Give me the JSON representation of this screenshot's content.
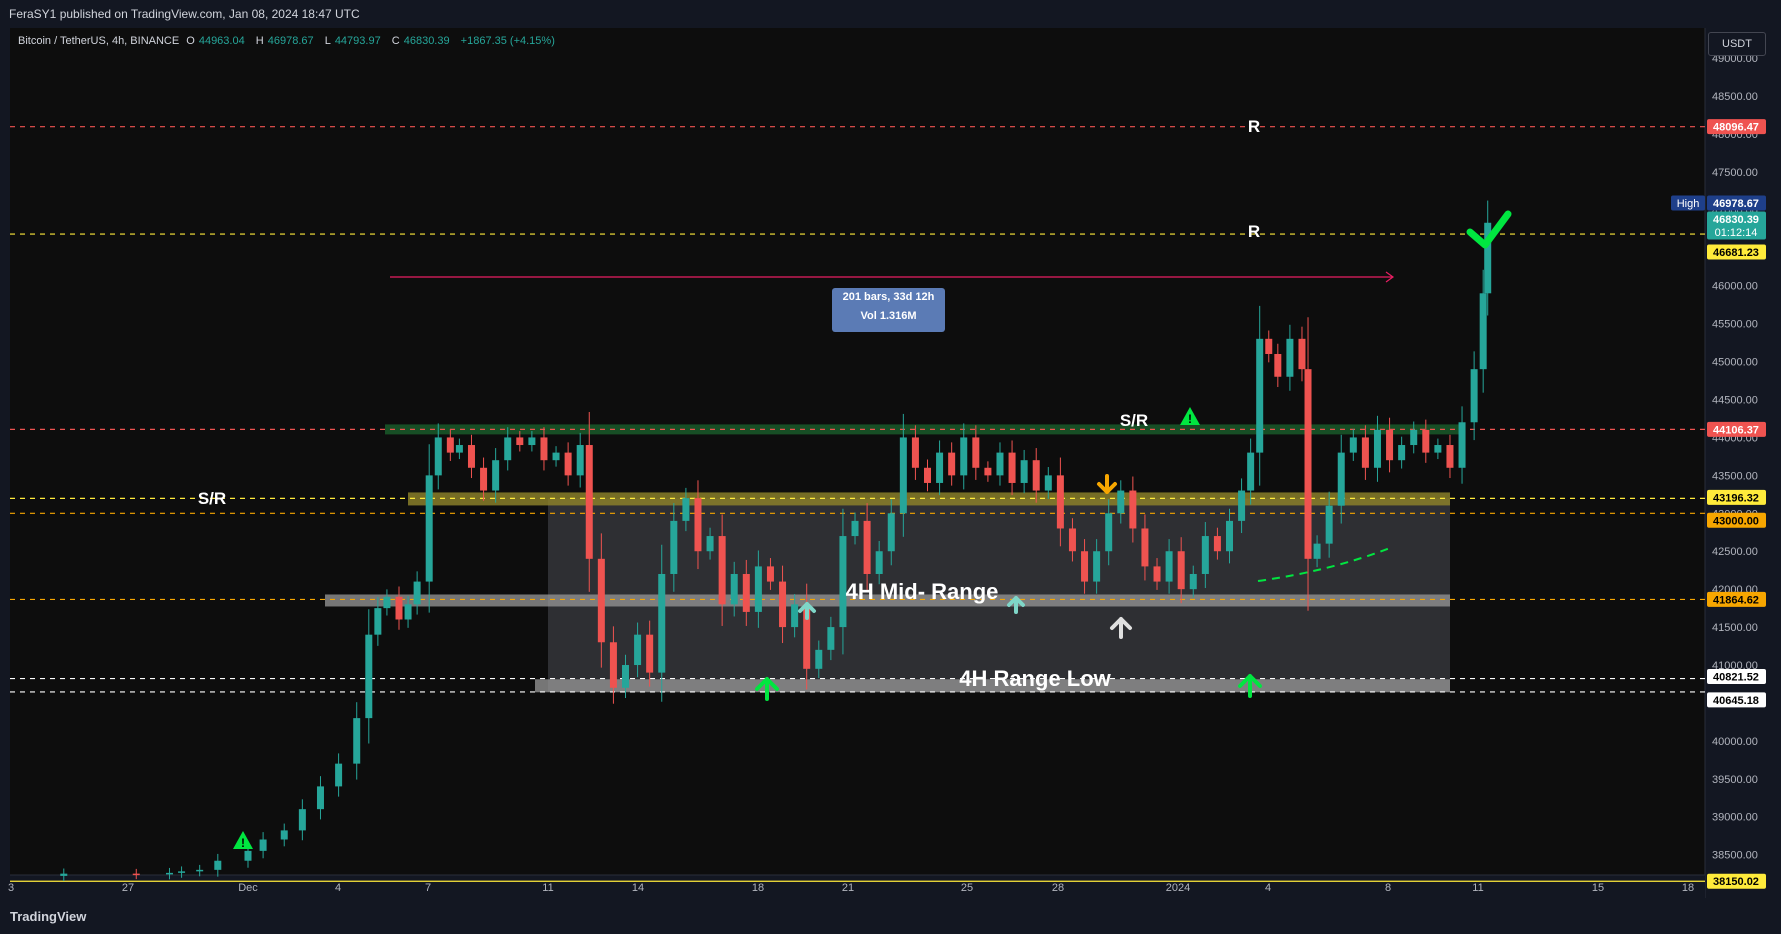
{
  "header": {
    "publisher": "FeraSY1 published on TradingView.com, Jan 08, 2024 18:47 UTC"
  },
  "legend": {
    "symbol": "Bitcoin / TetherUS, 4h, BINANCE",
    "open_label": "O",
    "open": "44963.04",
    "high_label": "H",
    "high": "46978.67",
    "low_label": "L",
    "low": "44793.97",
    "close_label": "C",
    "close": "46830.39",
    "change": "+1867.35 (+4.15%)"
  },
  "currency_button": "USDT",
  "footer": {
    "logo": "TradingView"
  },
  "colors": {
    "up": "#26a69a",
    "down": "#ef5350",
    "accent_green": "#00e640",
    "resistance_line": "#ef5350",
    "sr_line": "#f7a600",
    "yellow_line": "#ffeb3b"
  },
  "chart_data": {
    "type": "candlestick",
    "title": "",
    "xlabel": "",
    "ylabel": "",
    "ylim": [
      37900,
      49300
    ],
    "y_ticks": [
      "38500.00",
      "39000.00",
      "39500.00",
      "40000.00",
      "40500.00",
      "41000.00",
      "41500.00",
      "42000.00",
      "42500.00",
      "43000.00",
      "43500.00",
      "44000.00",
      "44500.00",
      "45000.00",
      "45500.00",
      "46000.00",
      "46500.00",
      "47000.00",
      "47500.00",
      "48000.00",
      "48500.00",
      "49000.00"
    ],
    "x_ticks": [
      "3",
      "27",
      "Dec",
      "4",
      "7",
      "11",
      "14",
      "18",
      "21",
      "25",
      "28",
      "2024",
      "4",
      "8",
      "11",
      "15",
      "18"
    ],
    "price_path": [
      [
        -6.7,
        38220
      ],
      [
        -6.1,
        38250
      ],
      [
        -3.7,
        38240
      ],
      [
        -2.6,
        38260
      ],
      [
        -2.2,
        38280
      ],
      [
        -1.6,
        38300
      ],
      [
        -1.0,
        38420
      ],
      [
        0,
        38550
      ],
      [
        0.5,
        38700
      ],
      [
        1.2,
        38820
      ],
      [
        1.8,
        39100
      ],
      [
        2.4,
        39400
      ],
      [
        3.0,
        39700
      ],
      [
        3.6,
        40300
      ],
      [
        4.0,
        41400
      ],
      [
        4.3,
        41750
      ],
      [
        4.6,
        41900
      ],
      [
        5.0,
        41600
      ],
      [
        5.3,
        41800
      ],
      [
        5.6,
        42100
      ],
      [
        6.0,
        43500
      ],
      [
        6.3,
        44000
      ],
      [
        6.7,
        43800
      ],
      [
        7.0,
        43900
      ],
      [
        7.4,
        43600
      ],
      [
        7.8,
        43300
      ],
      [
        8.2,
        43700
      ],
      [
        8.6,
        44000
      ],
      [
        9.0,
        43900
      ],
      [
        9.4,
        44000
      ],
      [
        9.8,
        43700
      ],
      [
        10.2,
        43800
      ],
      [
        10.6,
        43500
      ],
      [
        11.0,
        43900
      ],
      [
        11.3,
        42400
      ],
      [
        11.7,
        41300
      ],
      [
        12.1,
        40700
      ],
      [
        12.5,
        41000
      ],
      [
        12.9,
        41400
      ],
      [
        13.3,
        40900
      ],
      [
        13.7,
        42200
      ],
      [
        14.1,
        42900
      ],
      [
        14.5,
        43200
      ],
      [
        14.9,
        42500
      ],
      [
        15.3,
        42700
      ],
      [
        15.7,
        41800
      ],
      [
        16.1,
        42200
      ],
      [
        16.5,
        41700
      ],
      [
        16.9,
        42300
      ],
      [
        17.3,
        42100
      ],
      [
        17.7,
        41500
      ],
      [
        18.1,
        41800
      ],
      [
        18.5,
        40950
      ],
      [
        18.9,
        41200
      ],
      [
        19.3,
        41500
      ],
      [
        19.7,
        42700
      ],
      [
        20.1,
        42900
      ],
      [
        20.5,
        42200
      ],
      [
        20.9,
        42500
      ],
      [
        21.3,
        43000
      ],
      [
        21.7,
        44000
      ],
      [
        22.1,
        43600
      ],
      [
        22.5,
        43400
      ],
      [
        22.9,
        43800
      ],
      [
        23.3,
        43500
      ],
      [
        23.7,
        44000
      ],
      [
        24.1,
        43600
      ],
      [
        24.5,
        43500
      ],
      [
        24.9,
        43800
      ],
      [
        25.3,
        43400
      ],
      [
        25.7,
        43700
      ],
      [
        26.1,
        43300
      ],
      [
        26.5,
        43500
      ],
      [
        26.9,
        42800
      ],
      [
        27.3,
        42500
      ],
      [
        27.7,
        42100
      ],
      [
        28.1,
        42500
      ],
      [
        28.5,
        43000
      ],
      [
        28.9,
        43300
      ],
      [
        29.3,
        42800
      ],
      [
        29.7,
        42300
      ],
      [
        30.1,
        42100
      ],
      [
        30.5,
        42500
      ],
      [
        30.9,
        42000
      ],
      [
        31.3,
        42200
      ],
      [
        31.7,
        42700
      ],
      [
        32.1,
        42500
      ],
      [
        32.5,
        42900
      ],
      [
        32.9,
        43300
      ],
      [
        33.2,
        43800
      ],
      [
        33.5,
        45300
      ],
      [
        33.8,
        45100
      ],
      [
        34.1,
        44800
      ],
      [
        34.5,
        45300
      ],
      [
        34.9,
        44900
      ],
      [
        35.1,
        42400
      ],
      [
        35.4,
        42600
      ],
      [
        35.8,
        43100
      ],
      [
        36.2,
        43800
      ],
      [
        36.6,
        44000
      ],
      [
        37.0,
        43600
      ],
      [
        37.4,
        44100
      ],
      [
        37.8,
        43700
      ],
      [
        38.2,
        43900
      ],
      [
        38.6,
        44100
      ],
      [
        39.0,
        43800
      ],
      [
        39.4,
        43900
      ],
      [
        39.8,
        43600
      ],
      [
        40.2,
        44200
      ],
      [
        40.6,
        44900
      ],
      [
        40.9,
        45900
      ],
      [
        41.05,
        46830
      ]
    ],
    "annotations": [
      {
        "kind": "hline",
        "label": "R",
        "price": 48096.47,
        "style": "dashed",
        "color": "#ef5350"
      },
      {
        "kind": "hline",
        "label": "R",
        "price": 46681.23,
        "style": "dashed",
        "color": "#ffeb3b"
      },
      {
        "kind": "hline",
        "label": "S/R",
        "price": 44106.37,
        "style": "dashed",
        "color": "#ef5350"
      },
      {
        "kind": "hline",
        "label": "",
        "price": 43196.32,
        "style": "dashed",
        "color": "#ffeb3b"
      },
      {
        "kind": "hline",
        "label": "S/R",
        "price": 43000.0,
        "style": "dashed",
        "color": "#f7a600"
      },
      {
        "kind": "hline",
        "label": "",
        "price": 41864.62,
        "style": "dashed",
        "color": "#f7a600"
      },
      {
        "kind": "hline",
        "label": "",
        "price": 40821.52,
        "style": "dashed",
        "color": "#ffffff"
      },
      {
        "kind": "hline",
        "label": "",
        "price": 40645.18,
        "style": "dashed",
        "color": "#ffffff"
      },
      {
        "kind": "hline",
        "label": "",
        "price": 38150.02,
        "style": "solid",
        "color": "#ffeb3b"
      },
      {
        "kind": "zone",
        "label": "4H Mid- Range",
        "price": 41864.62
      },
      {
        "kind": "zone",
        "label": "4H Range Low",
        "price": 40733
      }
    ],
    "measure": {
      "bars": "201 bars, 33d 12h",
      "volume": "Vol 1.316M"
    },
    "price_labels": [
      {
        "value": "48096.47",
        "bg": "#ef5350",
        "fg": "#ffffff"
      },
      {
        "value": "46978.67",
        "bg": "#1e3f8a",
        "fg": "#ffffff",
        "prefix": "High"
      },
      {
        "value": "46830.39",
        "bg": "#26a69a",
        "fg": "#ffffff",
        "sub": "01:12:14"
      },
      {
        "value": "46681.23",
        "bg": "#ffeb3b",
        "fg": "#000000"
      },
      {
        "value": "44106.37",
        "bg": "#ef5350",
        "fg": "#ffffff"
      },
      {
        "value": "43196.32",
        "bg": "#ffeb3b",
        "fg": "#000000"
      },
      {
        "value": "43000.00",
        "bg": "#f7a600",
        "fg": "#000000"
      },
      {
        "value": "41864.62",
        "bg": "#f7a600",
        "fg": "#000000"
      },
      {
        "value": "40821.52",
        "bg": "#ffffff",
        "fg": "#000000"
      },
      {
        "value": "40645.18",
        "bg": "#ffffff",
        "fg": "#000000"
      },
      {
        "value": "38150.02",
        "bg": "#ffeb3b",
        "fg": "#000000"
      }
    ]
  }
}
